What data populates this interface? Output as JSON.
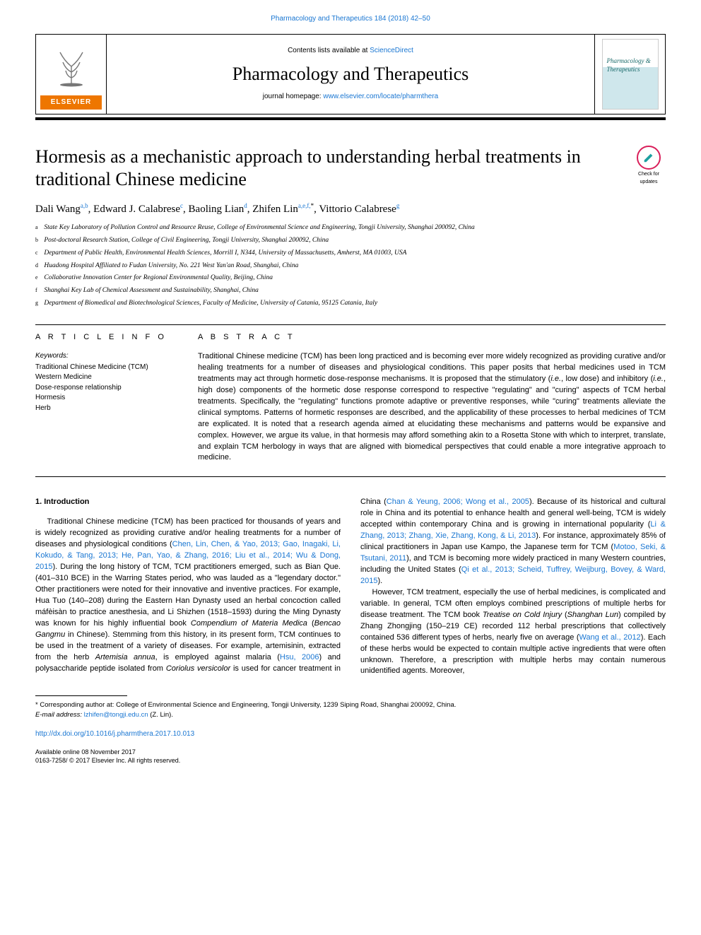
{
  "header": {
    "citation": "Pharmacology and Therapeutics 184 (2018) 42–50",
    "contents_prefix": "Contents lists available at ",
    "contents_link": "ScienceDirect",
    "journal": "Pharmacology and Therapeutics",
    "homepage_prefix": "journal homepage: ",
    "homepage_link": "www.elsevier.com/locate/pharmthera",
    "publisher": "ELSEVIER",
    "cover_label": "Pharmacology & Therapeutics"
  },
  "updates_badge": {
    "line1": "Check for",
    "line2": "updates"
  },
  "title": "Hormesis as a mechanistic approach to understanding herbal treatments in traditional Chinese medicine",
  "authors_html": "Dali Wang<sup>a,b</sup>, Edward J. Calabrese<sup>c</sup>, Baoling Lian<sup>d</sup>, Zhifen Lin<sup>a,e,f,</sup><sup class='black'>*</sup>, Vittorio Calabrese<sup>g</sup>",
  "affiliations": [
    {
      "tag": "a",
      "text": "State Key Laboratory of Pollution Control and Resource Reuse, College of Environmental Science and Engineering, Tongji University, Shanghai 200092, China"
    },
    {
      "tag": "b",
      "text": "Post-doctoral Research Station, College of Civil Engineering, Tongji University, Shanghai 200092, China"
    },
    {
      "tag": "c",
      "text": "Department of Public Health, Environmental Health Sciences, Morrill I, N344, University of Massachusetts, Amherst, MA 01003, USA"
    },
    {
      "tag": "d",
      "text": "Huadong Hospital Affiliated to Fudan University, No. 221 West Yan'an Road, Shanghai, China"
    },
    {
      "tag": "e",
      "text": "Collaborative Innovation Center for Regional Environmental Quality, Beijing, China"
    },
    {
      "tag": "f",
      "text": "Shanghai Key Lab of Chemical Assessment and Sustainability, Shanghai, China"
    },
    {
      "tag": "g",
      "text": "Department of Biomedical and Biotechnological Sciences, Faculty of Medicine, University of Catania, 95125 Catania, Italy"
    }
  ],
  "article_info": {
    "heading": "A R T I C L E  I N F O",
    "kw_label": "Keywords:",
    "keywords": [
      "Traditional Chinese Medicine (TCM)",
      "Western Medicine",
      "Dose-response relationship",
      "Hormesis",
      "Herb"
    ]
  },
  "abstract": {
    "heading": "A B S T R A C T",
    "text": "Traditional Chinese medicine (TCM) has been long practiced and is becoming ever more widely recognized as providing curative and/or healing treatments for a number of diseases and physiological conditions. This paper posits that herbal medicines used in TCM treatments may act through hormetic dose-response mechanisms. It is proposed that the stimulatory (i.e., low dose) and inhibitory (i.e., high dose) components of the hormetic dose response correspond to respective \"regulating\" and \"curing\" aspects of TCM herbal treatments. Specifically, the \"regulating\" functions promote adaptive or preventive responses, while \"curing\" treatments alleviate the clinical symptoms. Patterns of hormetic responses are described, and the applicability of these processes to herbal medicines of TCM are explicated. It is noted that a research agenda aimed at elucidating these mechanisms and patterns would be expansive and complex. However, we argue its value, in that hormesis may afford something akin to a Rosetta Stone with which to interpret, translate, and explain TCM herbology in ways that are aligned with biomedical perspectives that could enable a more integrative approach to medicine."
  },
  "body": {
    "section_heading": "1. Introduction",
    "col1_p1_a": "Traditional Chinese medicine (TCM) has been practiced for thousands of years and is widely recognized as providing curative and/or healing treatments for a number of diseases and physiological conditions (",
    "col1_ref1": "Chen, Lin, Chen, & Yao, 2013; Gao, Inagaki, Li, Kokudo, & Tang, 2013; He, Pan, Yao, & Zhang, 2016; Liu et al., 2014; Wu & Dong, 2015",
    "col1_p1_b": "). During the long history of TCM, TCM practitioners emerged, such as Bian Que. (401–310 BCE) in the Warring States period, who was lauded as a \"legendary doctor.\" Other practitioners were noted for their innovative and inventive practices. For example, Hua Tuo (140–208) during the Eastern Han Dynasty used an herbal concoction called máfèisàn to practice anesthesia, and Li Shizhen (1518–1593) during the Ming Dynasty was known for his highly influential book ",
    "col1_em1": "Compendium of Materia Medica",
    "col1_p1_c": " (",
    "col1_em2": "Bencao Gangmu",
    "col1_p1_d": " in Chinese). Stemming from this history, in its present form, TCM continues to be used in the treatment of a variety of diseases. For example, artemisinin, extracted from the herb ",
    "col1_em3": "Artemisia annua",
    "col1_p1_e": ", is employed against malaria (",
    "col1_ref2": "Hsu, 2006",
    "col1_p1_f": ") and polysaccharide peptide isolated from ",
    "col1_em4": "Coriolus versicolor",
    "col1_p1_g": " is used for cancer ",
    "col2_p1_a": "treatment in China (",
    "col2_ref1": "Chan & Yeung, 2006; Wong et al., 2005",
    "col2_p1_b": "). Because of its historical and cultural role in China and its potential to enhance health and general well-being, TCM is widely accepted within contemporary China and is growing in international popularity (",
    "col2_ref2": "Li & Zhang, 2013; Zhang, Xie, Zhang, Kong, & Li, 2013",
    "col2_p1_c": "). For instance, approximately 85% of clinical practitioners in Japan use Kampo, the Japanese term for TCM (",
    "col2_ref3": "Motoo, Seki, & Tsutani, 2011",
    "col2_p1_d": "), and TCM is becoming more widely practiced in many Western countries, including the United States (",
    "col2_ref4": "Qi et al., 2013; Scheid, Tuffrey, Weijburg, Bovey, & Ward, 2015",
    "col2_p1_e": ").",
    "col2_p2_a": "However, TCM treatment, especially the use of herbal medicines, is complicated and variable. In general, TCM often employs combined prescriptions of multiple herbs for disease treatment. The TCM book ",
    "col2_em1": "Treatise on Cold Injury",
    "col2_p2_b": " (",
    "col2_em2": "Shanghan Lun",
    "col2_p2_c": ") compiled by Zhang Zhongjing (150–219 CE) recorded 112 herbal prescriptions that collectively contained 536 different types of herbs, nearly five on average (",
    "col2_ref5": "Wang et al., 2012",
    "col2_p2_d": "). Each of these herbs would be expected to contain multiple active ingredients that were often unknown. Therefore, a prescription with multiple herbs may contain numerous unidentified agents. Moreover,"
  },
  "footnote": {
    "corr": "* Corresponding author at: College of Environmental Science and Engineering, Tongji University, 1239 Siping Road, Shanghai 200092, China.",
    "email_label": "E-mail address: ",
    "email": "lzhifen@tongji.edu.cn",
    "email_suffix": " (Z. Lin)."
  },
  "doi": "http://dx.doi.org/10.1016/j.pharmthera.2017.10.013",
  "tail": {
    "line1": "Available online 08 November 2017",
    "line2": "0163-7258/ © 2017 Elsevier Inc. All rights reserved."
  },
  "colors": {
    "link": "#1976d2",
    "elsevier_orange": "#ee7600",
    "badge_ring": "#d91f5a",
    "badge_mark": "#1ca0a0"
  }
}
